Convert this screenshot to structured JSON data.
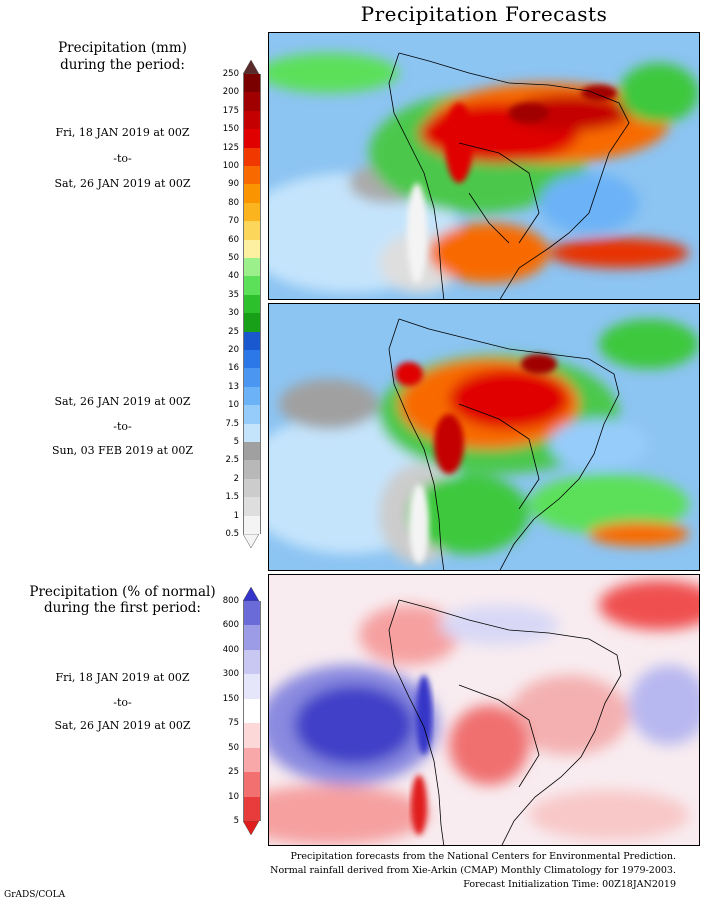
{
  "title": "Precipitation Forecasts",
  "panel1": {
    "heading_line1": "Precipitation (mm)",
    "heading_line2": "during the period:",
    "start": "Fri, 18 JAN 2019 at 00Z",
    "sep": "-to-",
    "end": "Sat, 26 JAN 2019 at 00Z"
  },
  "panel2": {
    "start": "Sat, 26 JAN 2019 at 00Z",
    "sep": "-to-",
    "end": "Sun, 03 FEB 2019 at 00Z"
  },
  "panel3": {
    "heading_line1": "Precipitation (% of normal)",
    "heading_line2": "during the first period:",
    "start": "Fri, 18 JAN 2019 at 00Z",
    "sep": "-to-",
    "end": "Sat, 26 JAN 2019 at 00Z"
  },
  "precip_scale": {
    "ticks": [
      "250",
      "200",
      "175",
      "150",
      "125",
      "100",
      "90",
      "80",
      "70",
      "60",
      "50",
      "40",
      "35",
      "30",
      "25",
      "20",
      "16",
      "13",
      "10",
      "7.5",
      "5",
      "2.5",
      "2",
      "1.5",
      "1",
      "0.5"
    ],
    "colors": [
      "#5a2a2a",
      "#7a0000",
      "#a00000",
      "#c40000",
      "#e00000",
      "#f03800",
      "#f86a00",
      "#fa9400",
      "#fcb41e",
      "#fcd65a",
      "#fdf0a0",
      "#9cf08c",
      "#5ce05a",
      "#2cc02c",
      "#18a018",
      "#1a58d0",
      "#2c78e8",
      "#4a96f0",
      "#6cb2f6",
      "#96ccfa",
      "#c4e4fc",
      "#a0a0a0",
      "#b8b8b8",
      "#cccccc",
      "#dedede",
      "#f4f4f4"
    ]
  },
  "pct_scale": {
    "ticks": [
      "800",
      "600",
      "400",
      "300",
      "150",
      "75",
      "50",
      "25",
      "10",
      "5"
    ],
    "colors": [
      "#3434c8",
      "#6a6ad8",
      "#9c9ce6",
      "#c8c8f2",
      "#e6e6fa",
      "#ffffff",
      "#fcd8d8",
      "#f8a8a8",
      "#f27070",
      "#e83c3c",
      "#e01c1c"
    ]
  },
  "footer": {
    "line1": "Precipitation forecasts from the National Centers for Environmental Prediction.",
    "line2": "Normal rainfall derived from Xie-Arkin (CMAP) Monthly Climatology for 1979-2003.",
    "line3": "Forecast Initialization Time: 00Z18JAN2019"
  },
  "credit": "GrADS/COLA"
}
